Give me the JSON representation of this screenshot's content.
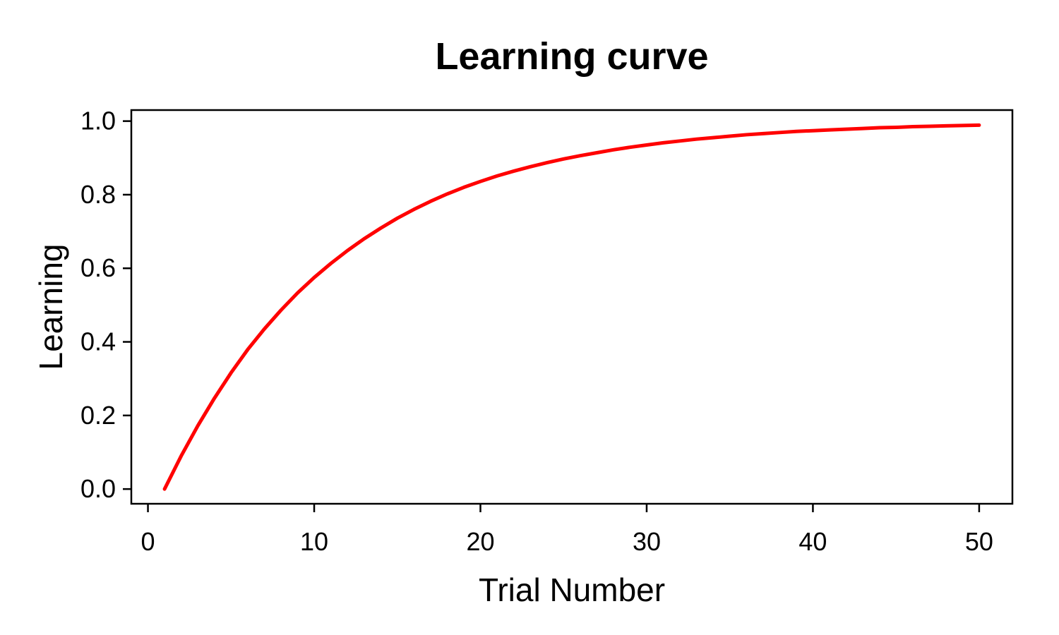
{
  "chart_data": {
    "type": "line",
    "title": "Learning curve",
    "xlabel": "Trial Number",
    "ylabel": "Learning",
    "xlim": [
      -1,
      52
    ],
    "ylim": [
      -0.04,
      1.03
    ],
    "x_ticks": [
      0,
      10,
      20,
      30,
      40,
      50
    ],
    "x_tick_labels": [
      "0",
      "10",
      "20",
      "30",
      "40",
      "50"
    ],
    "y_ticks": [
      0.0,
      0.2,
      0.4,
      0.6,
      0.8,
      1.0
    ],
    "y_tick_labels": [
      "0.0",
      "0.2",
      "0.4",
      "0.6",
      "0.8",
      "1.0"
    ],
    "grid": false,
    "legend": "none",
    "series": [
      {
        "color": "#ff0000",
        "x": [
          1,
          2,
          3,
          4,
          5,
          6,
          7,
          8,
          9,
          10,
          11,
          12,
          13,
          14,
          15,
          16,
          17,
          18,
          19,
          20,
          21,
          22,
          23,
          24,
          25,
          26,
          27,
          28,
          29,
          30,
          31,
          32,
          33,
          34,
          35,
          36,
          37,
          38,
          39,
          40,
          41,
          42,
          43,
          44,
          45,
          46,
          47,
          48,
          49,
          50
        ],
        "y": [
          0.0,
          0.09,
          0.172,
          0.247,
          0.316,
          0.379,
          0.435,
          0.486,
          0.533,
          0.575,
          0.613,
          0.648,
          0.68,
          0.709,
          0.736,
          0.76,
          0.782,
          0.802,
          0.82,
          0.836,
          0.851,
          0.864,
          0.876,
          0.887,
          0.897,
          0.906,
          0.914,
          0.922,
          0.929,
          0.935,
          0.941,
          0.946,
          0.951,
          0.955,
          0.959,
          0.963,
          0.966,
          0.969,
          0.972,
          0.974,
          0.976,
          0.978,
          0.98,
          0.982,
          0.983,
          0.985,
          0.986,
          0.987,
          0.988,
          0.989
        ]
      }
    ]
  }
}
